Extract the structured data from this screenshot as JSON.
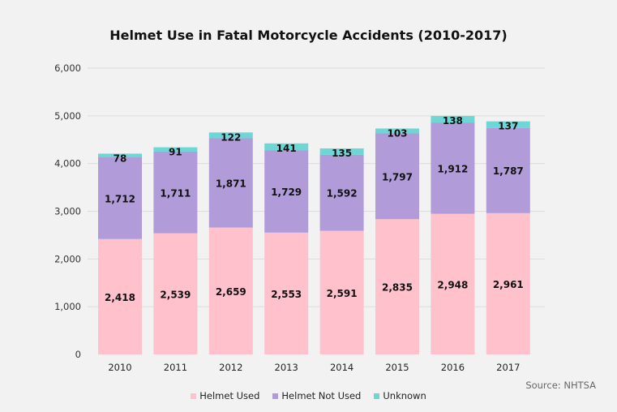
{
  "chart_data": {
    "type": "bar",
    "stacked": true,
    "title": "Helmet Use in Fatal Motorcycle Accidents (2010-2017)",
    "categories": [
      "2010",
      "2011",
      "2012",
      "2013",
      "2014",
      "2015",
      "2016",
      "2017"
    ],
    "series": [
      {
        "name": "Helmet Used",
        "color": "#ffc1cc",
        "values": [
          2418,
          2539,
          2659,
          2553,
          2591,
          2835,
          2948,
          2961
        ],
        "labels": [
          "2,418",
          "2,539",
          "2,659",
          "2,553",
          "2,591",
          "2,835",
          "2,948",
          "2,961"
        ]
      },
      {
        "name": "Helmet Not Used",
        "color": "#b19cd9",
        "values": [
          1712,
          1711,
          1871,
          1729,
          1592,
          1797,
          1912,
          1787
        ],
        "labels": [
          "1,712",
          "1,711",
          "1,871",
          "1,729",
          "1,592",
          "1,797",
          "1,912",
          "1,787"
        ]
      },
      {
        "name": "Unknown",
        "color": "#6fd6d6",
        "values": [
          78,
          91,
          122,
          141,
          135,
          103,
          138,
          137
        ],
        "labels": [
          "78",
          "91",
          "122",
          "141",
          "135",
          "103",
          "138",
          "137"
        ]
      }
    ],
    "ylim": [
      0,
      6000
    ],
    "yticks": [
      0,
      1000,
      2000,
      3000,
      4000,
      5000,
      6000
    ],
    "ytick_labels": [
      "0",
      "1,000",
      "2,000",
      "3,000",
      "4,000",
      "5,000",
      "6,000"
    ],
    "grid": true,
    "legend": "bottom",
    "source": "Source: NHTSA"
  }
}
